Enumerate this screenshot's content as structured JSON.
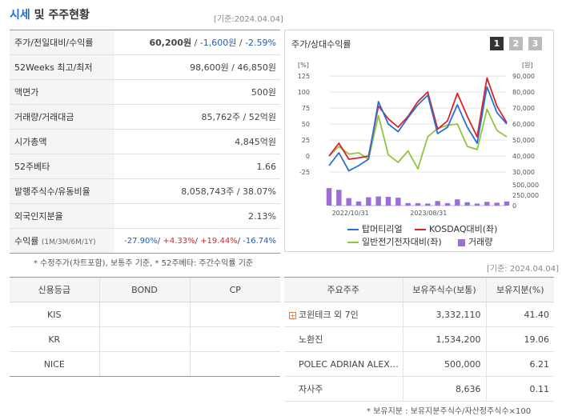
{
  "header": {
    "title_accent": "시세",
    "title_rest": "및 주주현황",
    "date_ref": "[기준:2024.04.04]"
  },
  "info_rows": [
    {
      "label": "주가/전일대비/수익률",
      "price": "60,200원",
      "change": "-1,600원",
      "rate": "-2.59%"
    },
    {
      "label": "52Weeks 최고/최저",
      "value": "98,600원 / 46,850원"
    },
    {
      "label": "액면가",
      "value": "500원"
    },
    {
      "label": "거래량/거래대금",
      "value": "85,762주 / 52억원"
    },
    {
      "label": "시가총액",
      "value": "4,845억원"
    },
    {
      "label": "52주베타",
      "value": "1.66"
    },
    {
      "label": "발행주식수/유동비율",
      "value": "8,058,743주 / 38.07%"
    },
    {
      "label": "외국인지분율",
      "value": "2.13%"
    },
    {
      "label": "수익률",
      "sub": "(1M/3M/6M/1Y)",
      "r1": "-27.90%",
      "r2": "+4.33%",
      "r3": "+19.44%",
      "r4": "-16.74%"
    }
  ],
  "footnote1": "* 수정주가(차트포함), 보통주 기준, * 52주베타: 주간수익률 기준",
  "date_ref2": "[기준: 2024.04.04]",
  "chart_panel": {
    "title": "주가/상대수익률",
    "pages": [
      "1",
      "2",
      "3"
    ],
    "unit_left": "[%]",
    "unit_right": "[원]"
  },
  "chart_data": {
    "type": "line",
    "x_ticks": [
      "2022/10/31",
      "2023/08/31"
    ],
    "left_axis": {
      "ticks": [
        "125",
        "100",
        "75",
        "50",
        "25",
        "0",
        "-25"
      ],
      "range": [
        -25,
        125
      ]
    },
    "right_axis": {
      "ticks": [
        "90,000",
        "80,000",
        "70,000",
        "60,000",
        "50,000",
        "40,000",
        "30,000"
      ],
      "range": [
        30000,
        90000
      ]
    },
    "volume_axis": {
      "ticks": [
        "500,000",
        "250,000",
        "0"
      ],
      "range": [
        0,
        500000
      ]
    },
    "series": [
      {
        "name": "탑머티리얼",
        "color": "#2b6fd4",
        "values": [
          -15,
          5,
          -23,
          -15,
          -5,
          85,
          50,
          38,
          60,
          80,
          95,
          35,
          45,
          80,
          45,
          20,
          108,
          68,
          50
        ]
      },
      {
        "name": "KOSDAQ대비(좌)",
        "color": "#d8232a",
        "values": [
          0,
          20,
          -5,
          -3,
          0,
          78,
          58,
          45,
          62,
          85,
          100,
          42,
          55,
          98,
          62,
          30,
          122,
          78,
          52
        ]
      },
      {
        "name": "일반전기전자대비(좌)",
        "color": "#8dc63f",
        "values": [
          0,
          15,
          3,
          5,
          -5,
          63,
          2,
          -10,
          8,
          -20,
          30,
          43,
          48,
          50,
          15,
          10,
          73,
          40,
          30
        ]
      }
    ],
    "volume": {
      "name": "거래량",
      "color": "#9b6fd6",
      "values": [
        420000,
        380000,
        180000,
        100000,
        200000,
        220000,
        210000,
        190000,
        60000,
        60000,
        50000,
        110000,
        60000,
        150000,
        80000,
        50000,
        90000,
        70000,
        100000
      ]
    }
  },
  "credit": {
    "headers": [
      "신용등급",
      "BOND",
      "CP"
    ],
    "rows": [
      [
        "KIS",
        "",
        ""
      ],
      [
        "KR",
        "",
        ""
      ],
      [
        "NICE",
        "",
        ""
      ]
    ]
  },
  "holders": {
    "headers": [
      "주요주주",
      "보유주식수(보통)",
      "보유지분(%)"
    ],
    "rows": [
      {
        "name": "코윈테크 외 7인",
        "shares": "3,332,110",
        "pct": "41.40",
        "expand": true
      },
      {
        "name": "노환진",
        "shares": "1,534,200",
        "pct": "19.06"
      },
      {
        "name": "POLEC ADRIAN ALEX…",
        "shares": "500,000",
        "pct": "6.21"
      },
      {
        "name": "자사주",
        "shares": "8,636",
        "pct": "0.11"
      }
    ]
  },
  "footnote2": "* 보유지분 : 보유지분주식수/자산정주식수×100",
  "colors": {
    "accent": "#1a6ccf",
    "negative": "#1a5fc4",
    "positive": "#d8232a"
  }
}
